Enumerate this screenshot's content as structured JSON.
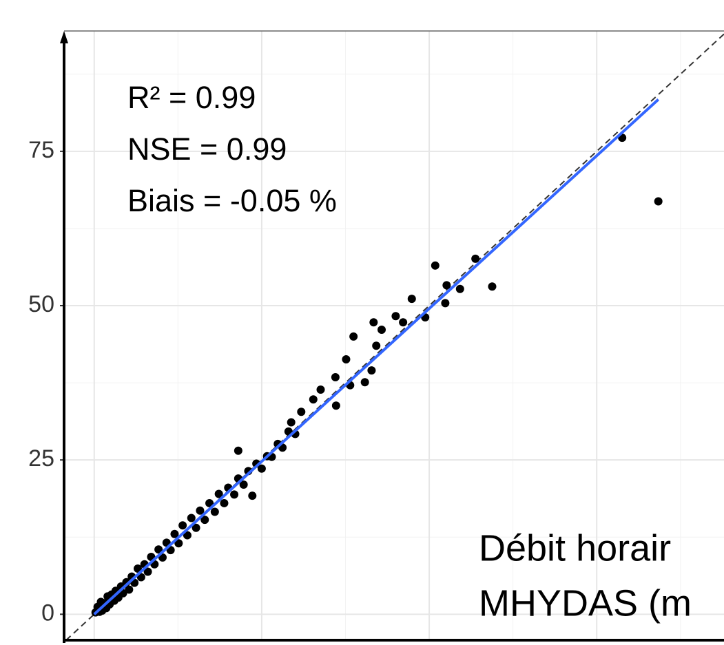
{
  "chart_data": {
    "type": "scatter",
    "annotations": [
      "R² = 0.99",
      "NSE = 0.99",
      "Biais = -0.05 %"
    ],
    "axis_label_fragments": [
      "Débit horair",
      "MHYDAS (m"
    ],
    "xlim": [
      -4.5,
      94
    ],
    "ylim": [
      -4.2,
      94.5
    ],
    "xticks": [
      0,
      25,
      50,
      75
    ],
    "yticks": [
      0,
      25,
      50,
      75
    ],
    "grid": true,
    "color": "#000000",
    "fit_line": {
      "x": [
        0,
        84.2
      ],
      "y": [
        0,
        83.4
      ],
      "color": "#3366ff"
    },
    "x": [
      0.2,
      0.5,
      0.8,
      1.0,
      1.2,
      1.5,
      1.8,
      2.0,
      2.3,
      2.6,
      3.0,
      3.2,
      3.6,
      4.0,
      4.3,
      4.8,
      5.2,
      5.6,
      6.0,
      6.5,
      7.0,
      7.5,
      8.0,
      8.5,
      9.0,
      9.6,
      10.2,
      10.8,
      11.4,
      12.0,
      12.6,
      13.2,
      13.9,
      14.5,
      15.2,
      15.8,
      16.5,
      17.2,
      18.0,
      18.6,
      19.4,
      20.0,
      20.9,
      21.5,
      22.3,
      23.0,
      23.6,
      24.2,
      25.0,
      25.8,
      26.5,
      27.4,
      28.1,
      29.0,
      30.0,
      21.5,
      29.4,
      30.9,
      32.7,
      33.8,
      36.1,
      36.0,
      37.6,
      38.2,
      40.4,
      41.4,
      42.1,
      42.9,
      38.7,
      41.7,
      46.1,
      45.0,
      47.4,
      49.4,
      52.4,
      54.6,
      52.6,
      50.9,
      56.9,
      59.4,
      78.8,
      84.2
    ],
    "y": [
      0.3,
      1.2,
      0.4,
      2.0,
      0.6,
      1.8,
      1.0,
      2.9,
      1.6,
      3.2,
      2.2,
      3.8,
      2.7,
      4.5,
      3.4,
      5.2,
      4.0,
      6.1,
      5.1,
      7.4,
      6.0,
      8.1,
      6.9,
      9.3,
      8.1,
      10.5,
      9.2,
      11.6,
      10.4,
      13.0,
      11.5,
      14.4,
      12.8,
      15.6,
      14.0,
      16.8,
      15.3,
      18.0,
      16.6,
      19.5,
      18.0,
      20.5,
      19.4,
      22.0,
      21.0,
      23.2,
      19.2,
      24.4,
      23.6,
      25.6,
      25.5,
      27.6,
      27.0,
      29.6,
      29.2,
      26.5,
      31.1,
      32.8,
      34.8,
      36.4,
      33.8,
      38.4,
      41.3,
      37.1,
      37.6,
      39.5,
      43.5,
      46.1,
      45.0,
      47.3,
      47.3,
      48.3,
      51.1,
      48.1,
      50.4,
      52.7,
      53.3,
      56.5,
      57.6,
      53.1,
      77.2,
      66.9
    ]
  }
}
